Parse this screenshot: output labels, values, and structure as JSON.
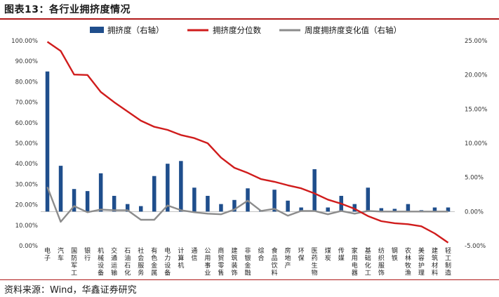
{
  "header": {
    "title": "图表13：各行业拥挤度情况"
  },
  "footer": {
    "source": "资料来源：Wind，华鑫证券研究"
  },
  "chart_data": {
    "type": "bar",
    "colors": {
      "bar": "#1f4e8c",
      "percentile": "#d01c1c",
      "weekly": "#8c8c8c",
      "axis": "#bfbfbf"
    },
    "categories": [
      "电子",
      "汽车",
      "国防军工",
      "银行",
      "机械设备",
      "交通运输",
      "石油石化",
      "社会服务",
      "有色金属",
      "电力设备",
      "计算机",
      "通信",
      "公用事业",
      "商贸零售",
      "建筑装饰",
      "非银金融",
      "综合",
      "食品饮料",
      "房地产",
      "环保",
      "医药生物",
      "煤炭",
      "传媒",
      "家用电器",
      "基础化工",
      "纺织服饰",
      "钢铁",
      "农林牧渔",
      "美容护理",
      "建筑材料",
      "轻工制造"
    ],
    "legend": [
      "拥挤度（右轴）",
      "拥挤度分位数",
      "周度拥挤度变化值（右轴）"
    ],
    "left_axis": {
      "ylim": [
        0,
        100
      ],
      "ticks": [
        0,
        10,
        20,
        30,
        40,
        50,
        60,
        70,
        80,
        90,
        100
      ],
      "tick_labels": [
        "0.00%",
        "10.00%",
        "20.00%",
        "30.00%",
        "40.00%",
        "50.00%",
        "60.00%",
        "70.00%",
        "80.00%",
        "90.00%",
        "100.00%"
      ]
    },
    "right_axis": {
      "ylim": [
        -5,
        25
      ],
      "ticks": [
        -5,
        0,
        5,
        10,
        15,
        20,
        25
      ],
      "tick_labels": [
        "-5.00%",
        "0.00%",
        "5.00%",
        "10.00%",
        "15.00%",
        "20.00%",
        "25.00%"
      ]
    },
    "series": [
      {
        "name": "拥挤度（右轴）",
        "type": "bar",
        "axis": "right",
        "values": [
          20.5,
          6.7,
          3.3,
          3.0,
          5.6,
          2.3,
          1.1,
          0.8,
          5.2,
          7.0,
          7.4,
          3.5,
          2.3,
          1.1,
          1.7,
          3.4,
          0.2,
          3.2,
          1.6,
          0.6,
          6.2,
          0.6,
          2.3,
          1.1,
          3.5,
          0.5,
          0.4,
          1.1,
          0.2,
          0.6,
          0.6
        ]
      },
      {
        "name": "拥挤度分位数",
        "type": "line",
        "axis": "left",
        "values": [
          99.5,
          95,
          83.5,
          83.3,
          75,
          70,
          65.5,
          61,
          58,
          56.5,
          54,
          52.5,
          50,
          43,
          38,
          35.5,
          32.5,
          31.2,
          29.5,
          28,
          25.5,
          22.5,
          20.5,
          18,
          14.5,
          12,
          11,
          10.5,
          9.5,
          6,
          1.5
        ]
      },
      {
        "name": "周度拥挤度变化值（右轴）",
        "type": "line",
        "axis": "right",
        "values": [
          3.6,
          -1.5,
          0.8,
          -0.1,
          0.3,
          0.2,
          0.2,
          -1.2,
          -1.2,
          0.9,
          0.2,
          -0.1,
          -0.3,
          -0.4,
          0.3,
          1.6,
          0.1,
          0.4,
          -0.6,
          0.1,
          0.1,
          -0.4,
          0.1,
          -0.3,
          0.1,
          0.0,
          0.0,
          0.0,
          0.0,
          0.0,
          0.0
        ]
      }
    ]
  }
}
